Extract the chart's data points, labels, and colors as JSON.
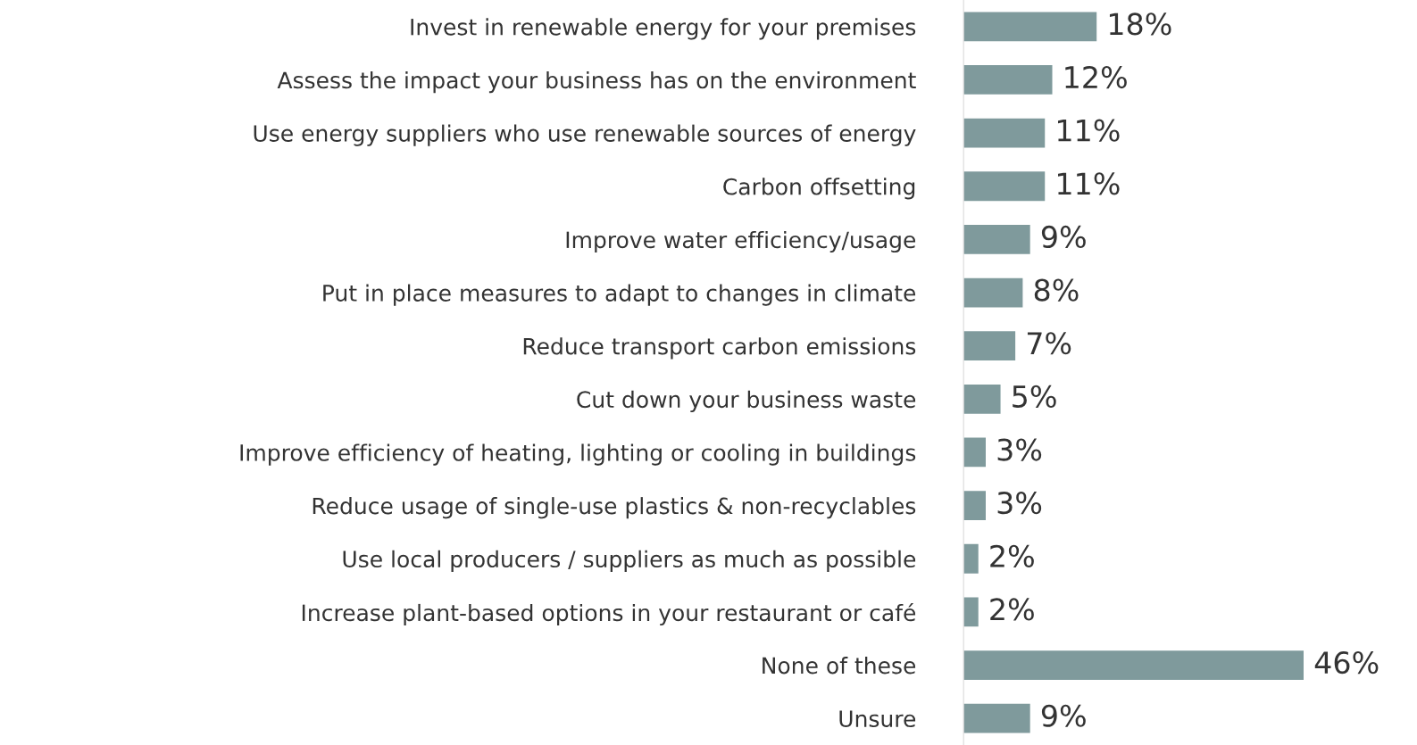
{
  "chart_data": {
    "type": "bar",
    "orientation": "horizontal",
    "categories": [
      "Invest in renewable energy for your premises",
      "Assess the impact your business has on the environment",
      "Use energy suppliers who use renewable sources of energy",
      "Carbon offsetting",
      "Improve water efficiency/usage",
      "Put in place measures to adapt to changes in climate",
      "Reduce transport carbon emissions",
      "Cut down your business waste",
      "Improve efficiency of heating, lighting or cooling in buildings",
      "Reduce usage of single-use plastics & non-recyclables",
      "Use local producers / suppliers as much as possible",
      "Increase plant-based options in your restaurant or café",
      "None of these",
      "Unsure"
    ],
    "values": [
      18,
      12,
      11,
      11,
      9,
      8,
      7,
      5,
      3,
      3,
      2,
      2,
      46,
      9
    ],
    "value_labels": [
      "18%",
      "12%",
      "11%",
      "11%",
      "9%",
      "8%",
      "7%",
      "5%",
      "3%",
      "3%",
      "2%",
      "2%",
      "46%",
      "9%"
    ],
    "color": "#7f9a9c",
    "grid": false,
    "legend": false
  }
}
